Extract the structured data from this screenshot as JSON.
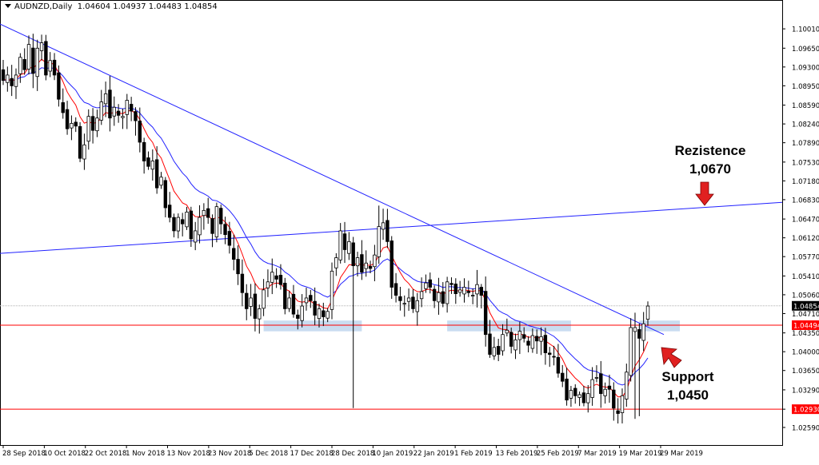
{
  "header": {
    "symbol": "AUDNZD,Daily",
    "ohlc": "1.04604 1.04937 1.04483 1.04854"
  },
  "annotations": {
    "resistance_title": "Rezistence",
    "resistance_value": "1,0670",
    "support_title": "Support",
    "support_value": "1,0450"
  },
  "colors": {
    "candle": "#000000",
    "ma_fast": "#ff0000",
    "ma_slow": "#2222ff",
    "trendline": "#2222ff",
    "hline": "#ff0000",
    "zone": "#c9dcf0",
    "arrow": "#e02020",
    "current_price_tag": "#000000",
    "level_tag": "#ff0000"
  },
  "chart_data": {
    "type": "candlestick",
    "symbol": "AUDNZD",
    "timeframe": "Daily",
    "ylim": [
      1.0259,
      1.1019
    ],
    "y_ticks": [
      "1.10010",
      "1.09650",
      "1.09300",
      "1.08950",
      "1.08590",
      "1.08240",
      "1.07890",
      "1.07530",
      "1.07180",
      "1.06830",
      "1.06470",
      "1.06120",
      "1.05770",
      "1.05410",
      "1.05060",
      "1.04710",
      "1.04350",
      "1.04000",
      "1.03650",
      "1.03290",
      "1.02930",
      "1.02590"
    ],
    "x_tick_labels": [
      "28 Sep 2018",
      "10 Oct 2018",
      "22 Oct 2018",
      "1 Nov 2018",
      "13 Nov 2018",
      "23 Nov 2018",
      "5 Dec 2018",
      "17 Dec 2018",
      "28 Dec 2018",
      "10 Jan 2019",
      "22 Jan 2019",
      "1 Feb 2019",
      "13 Feb 2019",
      "25 Feb 2019",
      "7 Mar 2019",
      "19 Mar 2019",
      "29 Mar 2019"
    ],
    "price_tags": [
      {
        "label": "1.04854",
        "value": 1.04854,
        "style": "current"
      },
      {
        "label": "1.04494",
        "value": 1.04494,
        "style": "level"
      },
      {
        "label": "1.02930",
        "value": 1.0293,
        "style": "level"
      }
    ],
    "horizontal_lines": [
      1.04494,
      1.0293
    ],
    "closes": [
      1.0905,
      1.0915,
      1.0895,
      1.0915,
      1.0948,
      1.0925,
      1.0972,
      1.0918,
      1.0965,
      1.0975,
      1.0915,
      1.0942,
      1.0915,
      1.087,
      1.0845,
      1.0815,
      1.0825,
      1.082,
      1.076,
      1.0785,
      1.0838,
      1.0812,
      1.0835,
      1.0865,
      1.088,
      1.0835,
      1.0855,
      1.084,
      1.0838,
      1.0868,
      1.0848,
      1.083,
      1.079,
      1.0755,
      1.0745,
      1.0755,
      1.0705,
      1.0725,
      1.0668,
      1.065,
      1.0625,
      1.065,
      1.0638,
      1.066,
      1.061,
      1.0625,
      1.065,
      1.0663,
      1.065,
      1.062,
      1.067,
      1.0638,
      1.0618,
      1.0598,
      1.0572,
      1.0545,
      1.051,
      1.048,
      1.05,
      1.0462,
      1.048,
      1.0515,
      1.053,
      1.0548,
      1.0535,
      1.0525,
      1.048,
      1.05,
      1.047,
      1.0462,
      1.0485,
      1.05,
      1.0495,
      1.0468,
      1.048,
      1.0465,
      1.0475,
      1.055,
      1.0575,
      1.0625,
      1.059,
      1.0605,
      1.056,
      1.0575,
      1.0548,
      1.0565,
      1.0555,
      1.058,
      1.0633,
      1.064,
      1.0605,
      1.052,
      1.0505,
      1.0495,
      1.049,
      1.05,
      1.048,
      1.0495,
      1.0512,
      1.0528,
      1.052,
      1.0495,
      1.051,
      1.049,
      1.053,
      1.0525,
      1.0508,
      1.0515,
      1.052,
      1.051,
      1.0505,
      1.0525,
      1.0505,
      1.0432,
      1.0395,
      1.0408,
      1.0395,
      1.0432,
      1.044,
      1.041,
      1.0422,
      1.0438,
      1.0425,
      1.0412,
      1.043,
      1.042,
      1.0428,
      1.0398,
      1.0395,
      1.039,
      1.036,
      1.0345,
      1.031,
      1.0328,
      1.0318,
      1.032,
      1.0305,
      1.0322,
      1.0348,
      1.0352,
      1.0322,
      1.033,
      1.033,
      1.0295,
      1.0285,
      1.0318,
      1.0362,
      1.0445,
      1.0445,
      1.0425,
      1.0452,
      1.0485
    ]
  }
}
